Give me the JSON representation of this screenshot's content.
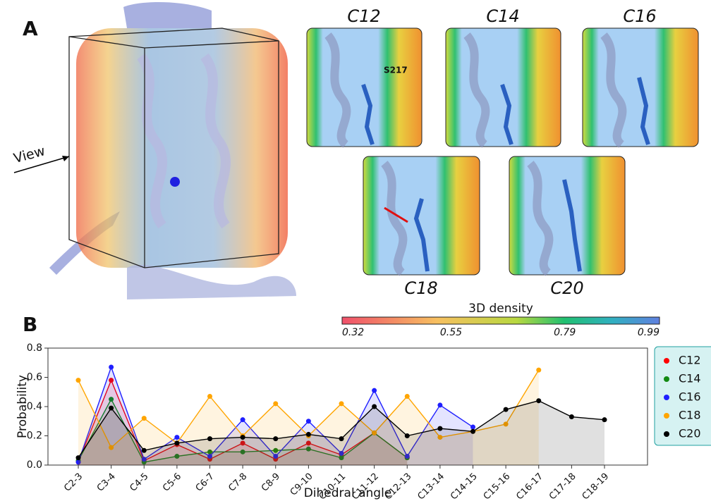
{
  "panels": {
    "label_a": "A",
    "label_b": "B",
    "view": "View",
    "residue": "S217",
    "titles": [
      "C12",
      "C14",
      "C16",
      "C18",
      "C20"
    ]
  },
  "colorbar": {
    "label": "3D density",
    "ticks": [
      0.32,
      0.55,
      0.79,
      0.99
    ]
  },
  "chart_data": {
    "type": "line",
    "xlabel": "Dihedral angle",
    "ylabel": "Probability",
    "categories": [
      "C2-3",
      "C3-4",
      "C4-5",
      "C5-6",
      "C6-7",
      "C7-8",
      "C8-9",
      "C9-10",
      "C10-11",
      "C11-12",
      "C12-13",
      "C13-14",
      "C14-15",
      "C15-16",
      "C16-17",
      "C17-18",
      "C18-19"
    ],
    "ylim": [
      0,
      0.8
    ],
    "yticks": [
      {
        "value": 0,
        "label": "0.0"
      },
      0.2,
      0.4,
      0.6,
      0.8
    ],
    "legend": "right",
    "series": [
      {
        "name": "C12",
        "color": "#ff0000",
        "values": [
          0.02,
          0.58,
          0.03,
          0.14,
          0.04,
          0.15,
          0.04,
          0.15,
          0.07,
          0.22,
          0.05,
          null,
          null,
          null,
          null,
          null,
          null
        ]
      },
      {
        "name": "C14",
        "color": "#138a13",
        "values": [
          0.03,
          0.45,
          0.02,
          0.06,
          0.09,
          0.09,
          0.1,
          0.11,
          0.05,
          0.22,
          0.05,
          null,
          null,
          null,
          null,
          null,
          null
        ]
      },
      {
        "name": "C16",
        "color": "#1f1fff",
        "values": [
          0.02,
          0.67,
          0.04,
          0.19,
          0.06,
          0.31,
          0.06,
          0.3,
          0.08,
          0.51,
          0.06,
          0.41,
          0.26,
          null,
          null,
          null,
          null
        ]
      },
      {
        "name": "C18",
        "color": "#ffa500",
        "values": [
          0.58,
          0.12,
          0.32,
          0.15,
          0.47,
          0.2,
          0.42,
          0.2,
          0.42,
          0.22,
          0.47,
          0.19,
          0.23,
          0.28,
          0.65,
          null,
          null
        ]
      },
      {
        "name": "C20",
        "color": "#000000",
        "values": [
          0.05,
          0.39,
          0.1,
          0.15,
          0.18,
          0.19,
          0.18,
          0.21,
          0.18,
          0.4,
          0.2,
          0.25,
          0.23,
          0.38,
          0.44,
          0.33,
          0.31
        ]
      }
    ]
  }
}
